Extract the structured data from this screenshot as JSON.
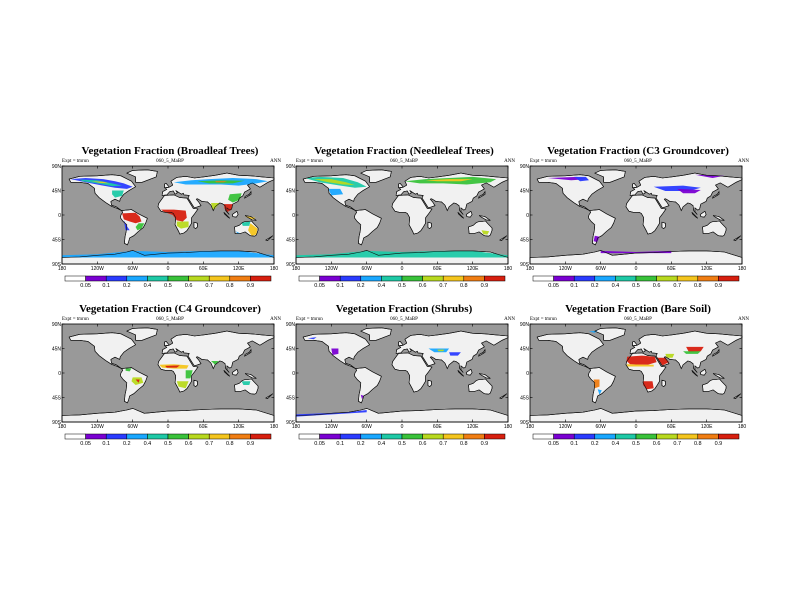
{
  "common": {
    "expt_label": "Expt = ",
    "expt_value": "tmrun",
    "season": "ANN",
    "lon_ticks": [
      "180",
      "120W",
      "60W",
      "0",
      "60E",
      "120E",
      "180"
    ],
    "lat_ticks": [
      "90N",
      "45N",
      "0",
      "45S",
      "90S"
    ],
    "colorbar_levels": [
      "0.05",
      "0.1",
      "0.2",
      "0.4",
      "0.5",
      "0.6",
      "0.7",
      "0.8",
      "0.9"
    ],
    "colorbar_colors": [
      "#ffffff",
      "#7a00d2",
      "#2a3bff",
      "#19a7ff",
      "#1ec9a6",
      "#39c23a",
      "#b8d91f",
      "#f4c51d",
      "#f07d12",
      "#d71f0f"
    ],
    "ocean_color": "#999999",
    "land_color": "#f1f1f1"
  },
  "panels": [
    {
      "title": "Vegetation Fraction (Broadleaf Trees)",
      "subtitle": "060_5_MaBP",
      "theme": "broadleaf"
    },
    {
      "title": "Vegetation Fraction (Needleleaf Trees)",
      "subtitle": "060_5_MaBP",
      "theme": "needleleaf"
    },
    {
      "title": "Vegetation Fraction (C3 Groundcover)",
      "subtitle": "060_5_MaBP",
      "theme": "c3"
    },
    {
      "title": "Vegetation Fraction (C4 Groundcover)",
      "subtitle": "060_5_MaBP",
      "theme": "c4"
    },
    {
      "title": "Vegetation Fraction (Shrubs)",
      "subtitle": "060_5_MaBP",
      "theme": "shrubs"
    },
    {
      "title": "Vegetation Fraction (Bare Soil)",
      "subtitle": "060_5_MaBP",
      "theme": "bare"
    }
  ],
  "chart_data": [
    {
      "type": "heatmap",
      "title": "Vegetation Fraction (Broadleaf Trees)",
      "subtitle": "060_5_MaBP",
      "x": "longitude",
      "y": "latitude",
      "xlim": [
        -180,
        180
      ],
      "ylim": [
        -90,
        90
      ],
      "levels": [
        0.05,
        0.1,
        0.2,
        0.4,
        0.5,
        0.6,
        0.7,
        0.8,
        0.9
      ]
    },
    {
      "type": "heatmap",
      "title": "Vegetation Fraction (Needleleaf Trees)",
      "subtitle": "060_5_MaBP",
      "x": "longitude",
      "y": "latitude",
      "xlim": [
        -180,
        180
      ],
      "ylim": [
        -90,
        90
      ],
      "levels": [
        0.05,
        0.1,
        0.2,
        0.4,
        0.5,
        0.6,
        0.7,
        0.8,
        0.9
      ]
    },
    {
      "type": "heatmap",
      "title": "Vegetation Fraction (C3 Groundcover)",
      "subtitle": "060_5_MaBP",
      "x": "longitude",
      "y": "latitude",
      "xlim": [
        -180,
        180
      ],
      "ylim": [
        -90,
        90
      ],
      "levels": [
        0.05,
        0.1,
        0.2,
        0.4,
        0.5,
        0.6,
        0.7,
        0.8,
        0.9
      ]
    },
    {
      "type": "heatmap",
      "title": "Vegetation Fraction (C4 Groundcover)",
      "subtitle": "060_5_MaBP",
      "x": "longitude",
      "y": "latitude",
      "xlim": [
        -180,
        180
      ],
      "ylim": [
        -90,
        90
      ],
      "levels": [
        0.05,
        0.1,
        0.2,
        0.4,
        0.5,
        0.6,
        0.7,
        0.8,
        0.9
      ]
    },
    {
      "type": "heatmap",
      "title": "Vegetation Fraction (Shrubs)",
      "subtitle": "060_5_MaBP",
      "x": "longitude",
      "y": "latitude",
      "xlim": [
        -180,
        180
      ],
      "ylim": [
        -90,
        90
      ],
      "levels": [
        0.05,
        0.1,
        0.2,
        0.4,
        0.5,
        0.6,
        0.7,
        0.8,
        0.9
      ]
    },
    {
      "type": "heatmap",
      "title": "Vegetation Fraction (Bare Soil)",
      "subtitle": "060_5_MaBP",
      "x": "longitude",
      "y": "latitude",
      "xlim": [
        -180,
        180
      ],
      "ylim": [
        -90,
        90
      ],
      "levels": [
        0.05,
        0.1,
        0.2,
        0.4,
        0.5,
        0.6,
        0.7,
        0.8,
        0.9
      ]
    }
  ]
}
